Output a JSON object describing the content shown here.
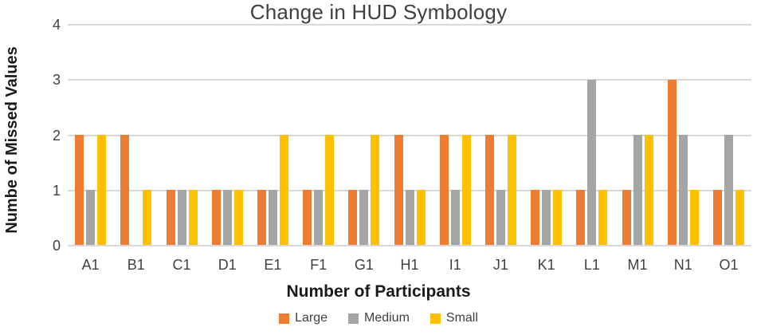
{
  "chart_data": {
    "type": "bar",
    "title": "Change in HUD Symbology",
    "xlabel": "Number of Participants",
    "ylabel": "Numbe of Missed Values",
    "categories": [
      "A1",
      "B1",
      "C1",
      "D1",
      "E1",
      "F1",
      "G1",
      "H1",
      "I1",
      "J1",
      "K1",
      "L1",
      "M1",
      "N1",
      "O1"
    ],
    "series": [
      {
        "name": "Large",
        "color": "#ED7D31",
        "values": [
          2,
          2,
          1,
          1,
          1,
          1,
          1,
          2,
          2,
          2,
          1,
          1,
          1,
          3,
          1
        ]
      },
      {
        "name": "Medium",
        "color": "#A5A5A5",
        "values": [
          1,
          0,
          1,
          1,
          1,
          1,
          1,
          1,
          1,
          1,
          1,
          3,
          2,
          2,
          2
        ]
      },
      {
        "name": "Small",
        "color": "#FFC000",
        "values": [
          2,
          1,
          1,
          1,
          2,
          2,
          2,
          1,
          2,
          2,
          1,
          1,
          2,
          1,
          1
        ]
      }
    ],
    "ylim": [
      0,
      4
    ],
    "yticks": [
      0,
      1,
      2,
      3,
      4
    ],
    "grid": true,
    "legend_position": "bottom"
  },
  "colors": {
    "gridline": "#D9D9D9",
    "title_text": "#404040",
    "axis_title_text": "#1A1A1A",
    "tick_text": "#404040",
    "background": "#FFFFFF"
  }
}
